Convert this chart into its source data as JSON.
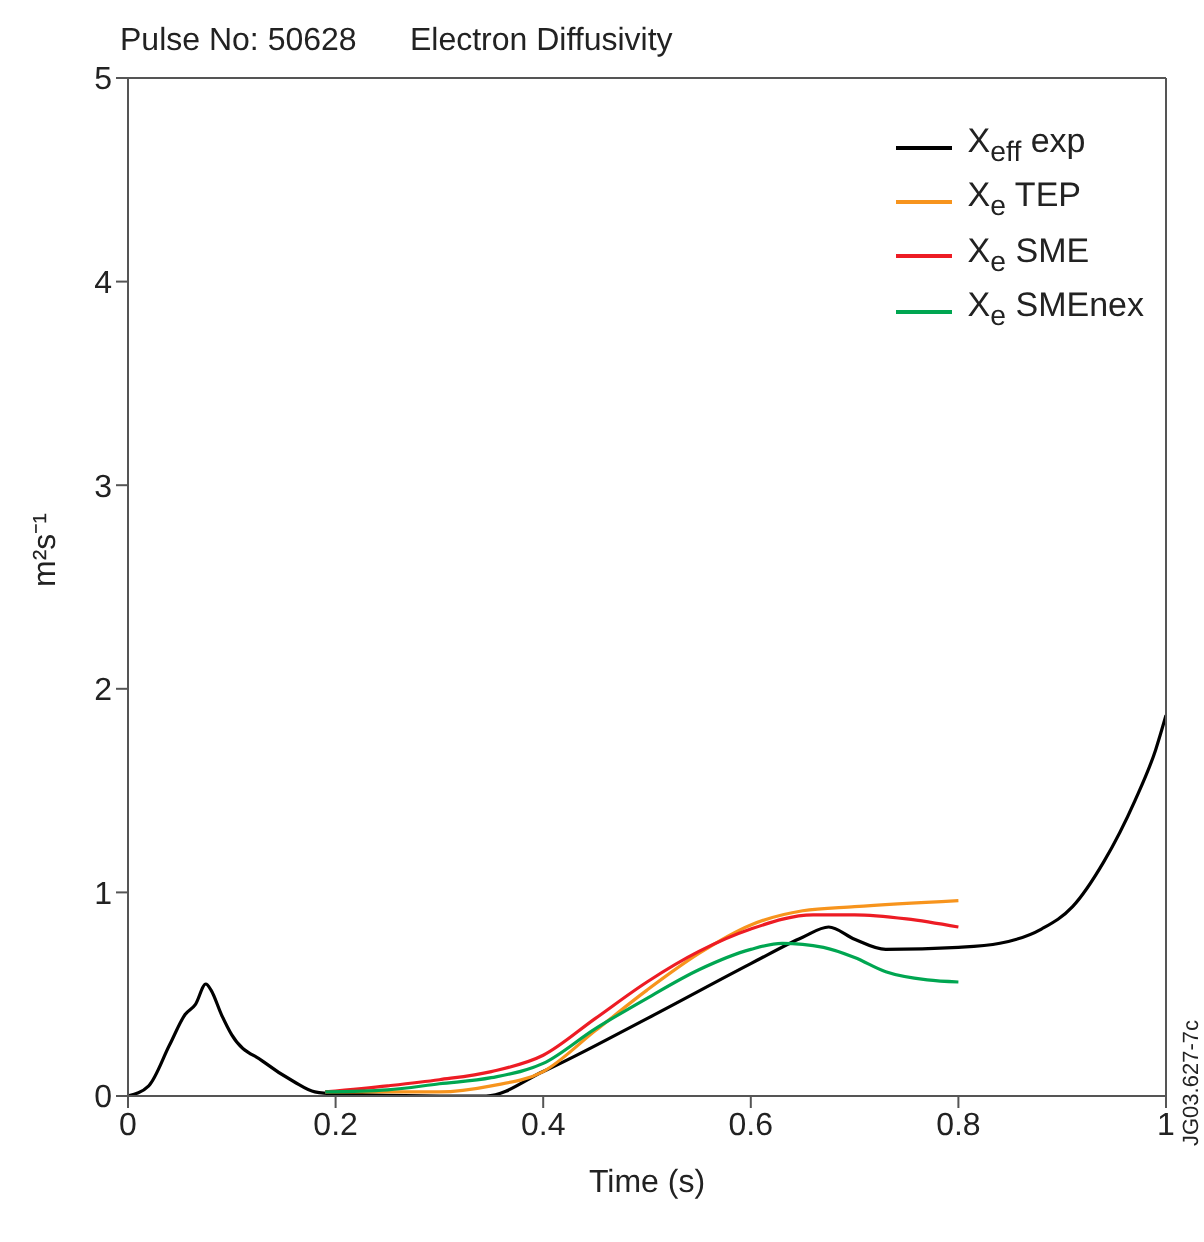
{
  "chart_data": {
    "type": "line",
    "title": "Pulse No: 50628      Electron Diffusivity",
    "xlabel": "Time (s)",
    "ylabel": "m²s⁻¹",
    "xlim": [
      0,
      1
    ],
    "xticks": [
      0,
      0.2,
      0.4,
      0.6,
      0.8,
      1.0
    ],
    "ylim": [
      0,
      5
    ],
    "yticks": [
      0,
      1,
      2,
      3,
      4,
      5
    ],
    "grid": false,
    "legend": "top right",
    "marker": "none",
    "line_style": "solid",
    "annotations": [
      "JG03.627-7c"
    ],
    "series": [
      {
        "name": "X$_{eff}$ exp",
        "color": "#000000",
        "x": [
          0,
          0.02,
          0.04,
          0.055,
          0.065,
          0.075,
          0.08,
          0.09,
          0.1,
          0.13,
          0.16,
          0.18,
          0.2,
          0.3,
          0.345,
          0.4,
          0.5,
          0.6,
          0.65,
          0.675,
          0.7,
          0.73,
          0.8,
          0.84,
          0.88,
          0.91,
          0.94,
          0.97,
          0.99,
          1.0
        ],
        "values": [
          0,
          0.05,
          0.25,
          0.4,
          0.45,
          0.55,
          0.52,
          0.4,
          0.3,
          0.17,
          0.07,
          0.02,
          0.01,
          0,
          0,
          0.12,
          0.38,
          0.65,
          0.78,
          0.83,
          0.77,
          0.72,
          0.73,
          0.75,
          0.82,
          0.93,
          1.15,
          1.45,
          1.7,
          1.87
        ]
      },
      {
        "name": "X$_{e}$ TEP",
        "color": "#f7941d",
        "x": [
          0.19,
          0.3,
          0.35,
          0.4,
          0.45,
          0.5,
          0.55,
          0.6,
          0.65,
          0.7,
          0.8
        ],
        "values": [
          0.02,
          0.02,
          0.05,
          0.12,
          0.32,
          0.52,
          0.7,
          0.84,
          0.91,
          0.93,
          0.96
        ]
      },
      {
        "name": "X$_{e}$ SME",
        "color": "#ed1c24",
        "x": [
          0.19,
          0.25,
          0.3,
          0.35,
          0.4,
          0.45,
          0.5,
          0.55,
          0.6,
          0.66,
          0.7,
          0.75,
          0.8
        ],
        "values": [
          0.02,
          0.05,
          0.08,
          0.12,
          0.2,
          0.38,
          0.56,
          0.71,
          0.82,
          0.89,
          0.89,
          0.87,
          0.83
        ]
      },
      {
        "name": "X$_{e}$ SMEnex",
        "color": "#00a651",
        "x": [
          0.19,
          0.25,
          0.3,
          0.35,
          0.4,
          0.45,
          0.5,
          0.55,
          0.6,
          0.63,
          0.67,
          0.7,
          0.73,
          0.77,
          0.8
        ],
        "values": [
          0.02,
          0.03,
          0.06,
          0.09,
          0.16,
          0.33,
          0.48,
          0.62,
          0.72,
          0.75,
          0.73,
          0.68,
          0.61,
          0.57,
          0.56
        ]
      }
    ]
  }
}
